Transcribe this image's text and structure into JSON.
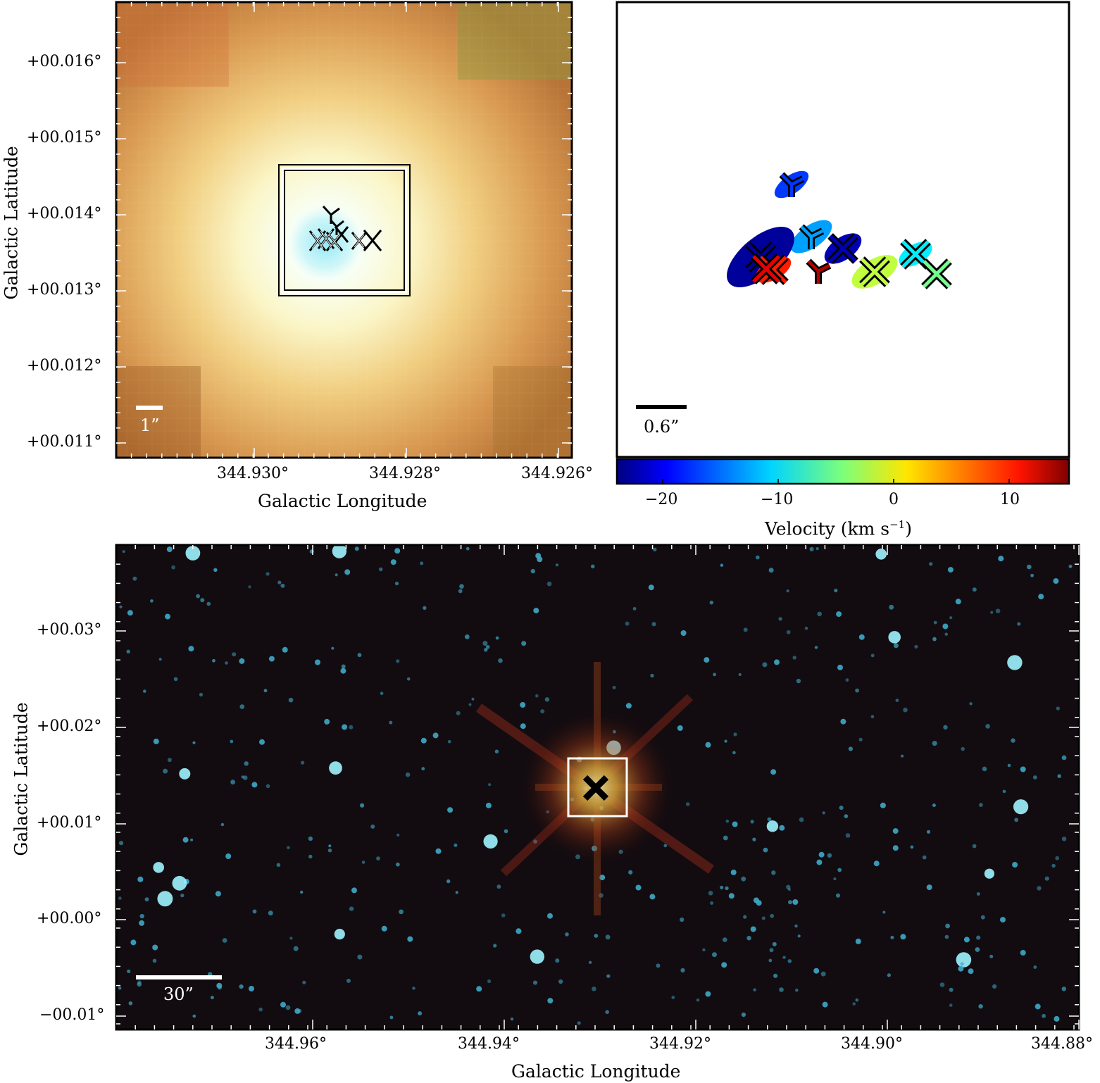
{
  "top_left_panel": {
    "y_ticks": [
      "+00.016°",
      "+00.015°",
      "+00.014°",
      "+00.013°",
      "+00.012°",
      "+00.011°"
    ],
    "x_ticks": [
      "344.930°",
      "344.928°",
      "344.926°"
    ],
    "x_label": "Galactic Longitude",
    "y_label": "Galactic Latitude",
    "scale_bar": "1”"
  },
  "top_right_panel": {
    "scale_bar": "0.6”",
    "colorbar": {
      "label": "Velocity (km s",
      "label_exp": "−1",
      "label_close": ")",
      "ticks": [
        "−20",
        "−10",
        "0",
        "10"
      ],
      "colormap": "jet",
      "vmin": -24,
      "vmax": 15
    }
  },
  "bottom_panel": {
    "y_ticks": [
      "+00.03°",
      "+00.02°",
      "+00.01°",
      "+00.00°",
      "−00.01°"
    ],
    "x_ticks": [
      "344.96°",
      "344.94°",
      "344.92°",
      "344.90°",
      "344.88°"
    ],
    "x_label": "Galactic Longitude",
    "y_label": "Galactic Latitude",
    "scale_bar": "30”"
  },
  "maser_spots": {
    "unit": "km/s",
    "spots": [
      {
        "marker": "Y",
        "velocity": -17
      },
      {
        "marker": "Y",
        "velocity": -13
      },
      {
        "marker": "X",
        "velocity": -22
      },
      {
        "marker": "Y",
        "velocity": 13
      },
      {
        "marker": "X",
        "velocity": -2
      },
      {
        "marker": "X",
        "velocity": -10
      },
      {
        "marker": "X",
        "velocity": -5
      },
      {
        "marker": "X",
        "velocity": -23
      },
      {
        "marker": "X",
        "velocity": 9
      },
      {
        "marker": "X",
        "velocity": 11
      }
    ]
  }
}
